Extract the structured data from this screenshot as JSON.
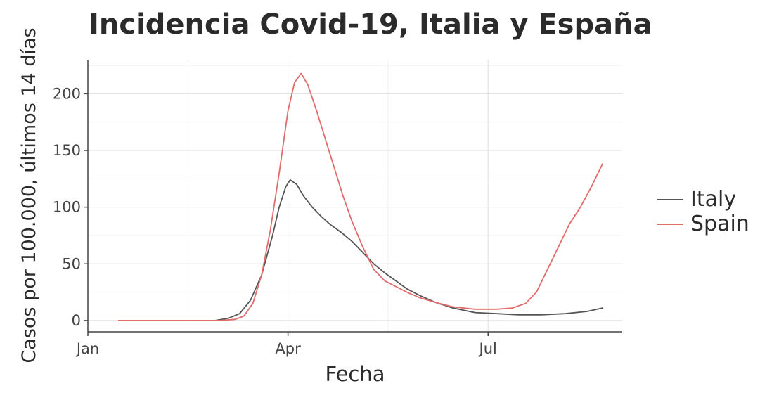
{
  "chart_data": {
    "type": "line",
    "title": "Incidencia Covid-19, Italia y España",
    "xlabel": "Fecha",
    "ylabel": "Casos por 100.000, últimos 14 días",
    "xlim": [
      "2020-01-01",
      "2020-08-31"
    ],
    "ylim": [
      -10,
      230
    ],
    "x_ticks": [
      {
        "date": "2020-01-01",
        "label": "Jan"
      },
      {
        "date": "2020-04-01",
        "label": "Apr"
      },
      {
        "date": "2020-07-01",
        "label": "Jul"
      }
    ],
    "y_ticks": [
      {
        "value": 0,
        "label": "0"
      },
      {
        "value": 50,
        "label": "50"
      },
      {
        "value": 100,
        "label": "100"
      },
      {
        "value": 150,
        "label": "150"
      },
      {
        "value": 200,
        "label": "200"
      }
    ],
    "grid": true,
    "legend_position": "right",
    "series": [
      {
        "name": "Italy",
        "color": "#555555",
        "x": [
          "2020-01-15",
          "2020-02-10",
          "2020-02-28",
          "2020-03-05",
          "2020-03-10",
          "2020-03-15",
          "2020-03-20",
          "2020-03-25",
          "2020-03-28",
          "2020-03-31",
          "2020-04-02",
          "2020-04-05",
          "2020-04-08",
          "2020-04-12",
          "2020-04-16",
          "2020-04-20",
          "2020-04-25",
          "2020-04-30",
          "2020-05-05",
          "2020-05-10",
          "2020-05-15",
          "2020-05-20",
          "2020-05-25",
          "2020-05-31",
          "2020-06-07",
          "2020-06-15",
          "2020-06-25",
          "2020-07-05",
          "2020-07-15",
          "2020-07-25",
          "2020-08-05",
          "2020-08-15",
          "2020-08-22"
        ],
        "values": [
          0,
          0,
          0,
          2,
          6,
          18,
          40,
          75,
          100,
          118,
          124,
          120,
          110,
          100,
          92,
          85,
          78,
          70,
          60,
          50,
          42,
          35,
          28,
          22,
          16,
          11,
          7,
          6,
          5,
          5,
          6,
          8,
          11
        ]
      },
      {
        "name": "Spain",
        "color": "#e06c6c",
        "x": [
          "2020-01-15",
          "2020-02-10",
          "2020-03-01",
          "2020-03-08",
          "2020-03-12",
          "2020-03-16",
          "2020-03-20",
          "2020-03-24",
          "2020-03-28",
          "2020-04-01",
          "2020-04-04",
          "2020-04-07",
          "2020-04-10",
          "2020-04-14",
          "2020-04-18",
          "2020-04-22",
          "2020-04-26",
          "2020-04-30",
          "2020-05-05",
          "2020-05-10",
          "2020-05-15",
          "2020-05-20",
          "2020-05-25",
          "2020-05-31",
          "2020-06-07",
          "2020-06-15",
          "2020-06-25",
          "2020-07-05",
          "2020-07-12",
          "2020-07-18",
          "2020-07-23",
          "2020-07-28",
          "2020-08-02",
          "2020-08-07",
          "2020-08-12",
          "2020-08-17",
          "2020-08-20",
          "2020-08-22"
        ],
        "values": [
          0,
          0,
          0,
          1,
          4,
          15,
          40,
          80,
          130,
          185,
          210,
          218,
          208,
          185,
          160,
          135,
          110,
          88,
          65,
          45,
          35,
          30,
          25,
          20,
          16,
          12,
          10,
          10,
          11,
          15,
          25,
          45,
          65,
          85,
          100,
          118,
          130,
          138
        ]
      }
    ]
  }
}
